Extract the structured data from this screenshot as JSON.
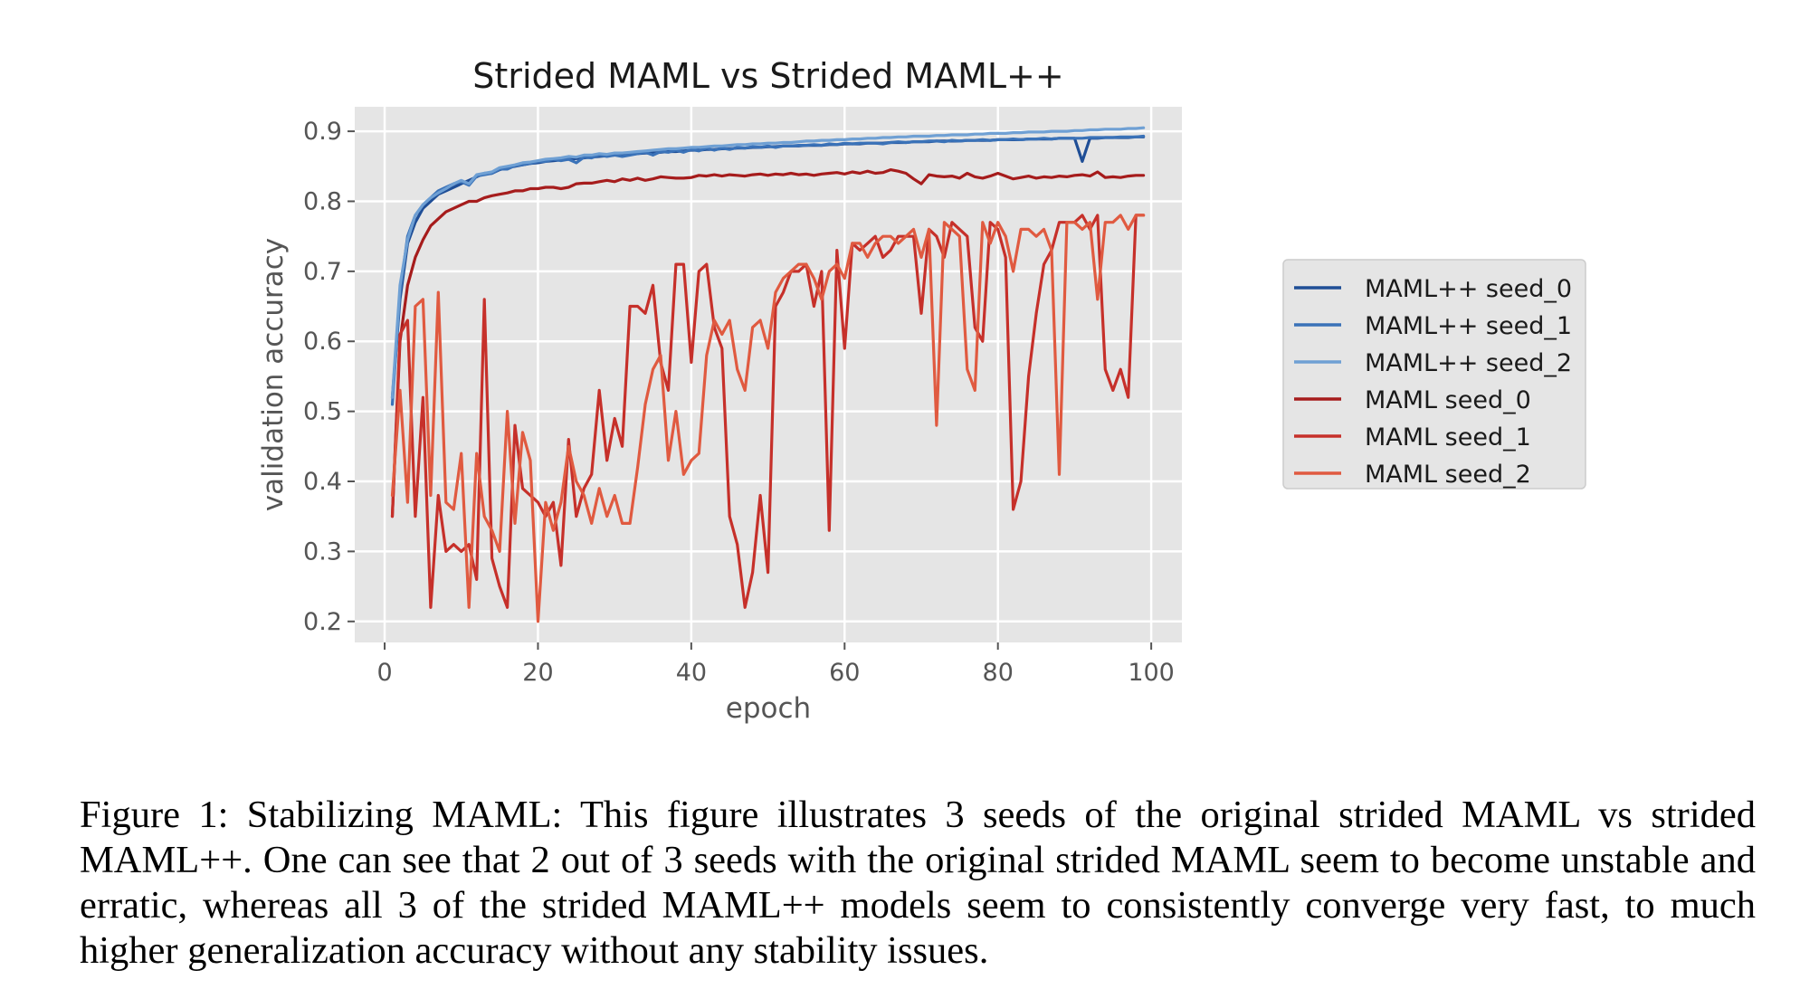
{
  "chart_data": {
    "type": "line",
    "title": "Strided MAML vs Strided MAML++",
    "xlabel": "epoch",
    "ylabel": "validation accuracy",
    "xlim": [
      -3.9,
      104
    ],
    "ylim": [
      0.17,
      0.935
    ],
    "xticks": [
      0,
      20,
      40,
      60,
      80,
      100
    ],
    "yticks": [
      0.2,
      0.3,
      0.4,
      0.5,
      0.6,
      0.7,
      0.8,
      0.9
    ],
    "xtick_labels": [
      "0",
      "20",
      "40",
      "60",
      "80",
      "100"
    ],
    "ytick_labels": [
      "0.2",
      "0.3",
      "0.4",
      "0.5",
      "0.6",
      "0.7",
      "0.8",
      "0.9"
    ],
    "grid": true,
    "legend_position": "outside-right",
    "background": "#e5e5e5",
    "x": [
      1,
      2,
      3,
      4,
      5,
      6,
      7,
      8,
      9,
      10,
      11,
      12,
      13,
      14,
      15,
      16,
      17,
      18,
      19,
      20,
      21,
      22,
      23,
      24,
      25,
      26,
      27,
      28,
      29,
      30,
      31,
      32,
      33,
      34,
      35,
      36,
      37,
      38,
      39,
      40,
      41,
      42,
      43,
      44,
      45,
      46,
      47,
      48,
      49,
      50,
      51,
      52,
      53,
      54,
      55,
      56,
      57,
      58,
      59,
      60,
      61,
      62,
      63,
      64,
      65,
      66,
      67,
      68,
      69,
      70,
      71,
      72,
      73,
      74,
      75,
      76,
      77,
      78,
      79,
      80,
      81,
      82,
      83,
      84,
      85,
      86,
      87,
      88,
      89,
      90,
      91,
      92,
      93,
      94,
      95,
      96,
      97,
      98,
      99
    ],
    "series": [
      {
        "name": "MAML++ seed_0",
        "color": "#1f4e96",
        "values": [
          0.52,
          0.66,
          0.74,
          0.77,
          0.79,
          0.8,
          0.81,
          0.815,
          0.82,
          0.825,
          0.83,
          0.835,
          0.84,
          0.84,
          0.845,
          0.848,
          0.85,
          0.852,
          0.854,
          0.855,
          0.857,
          0.858,
          0.859,
          0.86,
          0.861,
          0.862,
          0.863,
          0.864,
          0.865,
          0.866,
          0.866,
          0.867,
          0.868,
          0.869,
          0.869,
          0.87,
          0.871,
          0.871,
          0.872,
          0.873,
          0.873,
          0.874,
          0.874,
          0.875,
          0.875,
          0.876,
          0.876,
          0.877,
          0.877,
          0.878,
          0.878,
          0.879,
          0.879,
          0.879,
          0.88,
          0.88,
          0.88,
          0.881,
          0.881,
          0.882,
          0.882,
          0.882,
          0.883,
          0.883,
          0.883,
          0.884,
          0.884,
          0.884,
          0.885,
          0.885,
          0.885,
          0.886,
          0.886,
          0.886,
          0.886,
          0.887,
          0.887,
          0.887,
          0.887,
          0.888,
          0.888,
          0.888,
          0.888,
          0.889,
          0.889,
          0.889,
          0.889,
          0.89,
          0.89,
          0.89,
          0.857,
          0.89,
          0.89,
          0.891,
          0.891,
          0.891,
          0.891,
          0.892,
          0.892
        ]
      },
      {
        "name": "MAML++ seed_1",
        "color": "#3a72b8",
        "values": [
          0.51,
          0.67,
          0.75,
          0.78,
          0.795,
          0.805,
          0.815,
          0.82,
          0.825,
          0.828,
          0.823,
          0.836,
          0.838,
          0.84,
          0.846,
          0.846,
          0.851,
          0.852,
          0.854,
          0.857,
          0.857,
          0.86,
          0.858,
          0.86,
          0.855,
          0.863,
          0.862,
          0.866,
          0.864,
          0.866,
          0.864,
          0.866,
          0.868,
          0.87,
          0.866,
          0.871,
          0.87,
          0.873,
          0.87,
          0.874,
          0.872,
          0.876,
          0.873,
          0.876,
          0.874,
          0.877,
          0.876,
          0.878,
          0.877,
          0.879,
          0.877,
          0.879,
          0.879,
          0.88,
          0.88,
          0.881,
          0.88,
          0.882,
          0.881,
          0.883,
          0.882,
          0.883,
          0.883,
          0.883,
          0.882,
          0.884,
          0.885,
          0.884,
          0.885,
          0.885,
          0.886,
          0.886,
          0.885,
          0.887,
          0.886,
          0.887,
          0.887,
          0.888,
          0.887,
          0.888,
          0.888,
          0.889,
          0.888,
          0.889,
          0.889,
          0.89,
          0.889,
          0.89,
          0.89,
          0.89,
          0.89,
          0.891,
          0.891,
          0.891,
          0.891,
          0.892,
          0.892,
          0.892,
          0.893
        ]
      },
      {
        "name": "MAML++ seed_2",
        "color": "#6fa0d4",
        "values": [
          0.52,
          0.68,
          0.745,
          0.78,
          0.795,
          0.805,
          0.812,
          0.818,
          0.825,
          0.83,
          0.825,
          0.838,
          0.84,
          0.842,
          0.848,
          0.85,
          0.852,
          0.855,
          0.856,
          0.858,
          0.86,
          0.861,
          0.862,
          0.864,
          0.863,
          0.866,
          0.866,
          0.868,
          0.867,
          0.869,
          0.869,
          0.87,
          0.871,
          0.872,
          0.873,
          0.874,
          0.875,
          0.875,
          0.876,
          0.877,
          0.877,
          0.878,
          0.879,
          0.879,
          0.88,
          0.881,
          0.881,
          0.882,
          0.882,
          0.883,
          0.883,
          0.884,
          0.884,
          0.885,
          0.886,
          0.886,
          0.887,
          0.887,
          0.888,
          0.888,
          0.889,
          0.889,
          0.89,
          0.89,
          0.891,
          0.891,
          0.892,
          0.892,
          0.893,
          0.893,
          0.893,
          0.894,
          0.894,
          0.895,
          0.895,
          0.895,
          0.896,
          0.896,
          0.897,
          0.897,
          0.897,
          0.898,
          0.898,
          0.899,
          0.899,
          0.899,
          0.9,
          0.9,
          0.9,
          0.901,
          0.901,
          0.902,
          0.902,
          0.903,
          0.903,
          0.903,
          0.904,
          0.904,
          0.905
        ]
      },
      {
        "name": "MAML seed_0",
        "color": "#a61c1c",
        "values": [
          0.35,
          0.6,
          0.68,
          0.72,
          0.745,
          0.765,
          0.775,
          0.785,
          0.79,
          0.795,
          0.8,
          0.8,
          0.805,
          0.808,
          0.81,
          0.812,
          0.815,
          0.815,
          0.818,
          0.818,
          0.82,
          0.82,
          0.818,
          0.82,
          0.825,
          0.826,
          0.826,
          0.828,
          0.83,
          0.828,
          0.832,
          0.83,
          0.833,
          0.83,
          0.832,
          0.835,
          0.834,
          0.833,
          0.833,
          0.834,
          0.837,
          0.836,
          0.838,
          0.836,
          0.838,
          0.837,
          0.836,
          0.838,
          0.839,
          0.837,
          0.839,
          0.838,
          0.84,
          0.838,
          0.839,
          0.837,
          0.839,
          0.84,
          0.841,
          0.839,
          0.842,
          0.84,
          0.843,
          0.84,
          0.841,
          0.845,
          0.843,
          0.84,
          0.832,
          0.825,
          0.838,
          0.836,
          0.835,
          0.836,
          0.833,
          0.84,
          0.835,
          0.833,
          0.836,
          0.84,
          0.836,
          0.832,
          0.834,
          0.836,
          0.833,
          0.835,
          0.834,
          0.836,
          0.835,
          0.837,
          0.838,
          0.836,
          0.842,
          0.834,
          0.835,
          0.834,
          0.836,
          0.837,
          0.837
        ]
      },
      {
        "name": "MAML seed_1",
        "color": "#c6302a",
        "values": [
          0.35,
          0.61,
          0.63,
          0.35,
          0.52,
          0.22,
          0.38,
          0.3,
          0.31,
          0.3,
          0.31,
          0.26,
          0.66,
          0.29,
          0.25,
          0.22,
          0.48,
          0.39,
          0.38,
          0.37,
          0.35,
          0.37,
          0.28,
          0.46,
          0.35,
          0.39,
          0.41,
          0.53,
          0.43,
          0.49,
          0.45,
          0.65,
          0.65,
          0.64,
          0.68,
          0.57,
          0.53,
          0.71,
          0.71,
          0.57,
          0.7,
          0.71,
          0.62,
          0.59,
          0.35,
          0.31,
          0.22,
          0.27,
          0.38,
          0.27,
          0.65,
          0.67,
          0.7,
          0.7,
          0.71,
          0.65,
          0.7,
          0.33,
          0.73,
          0.59,
          0.74,
          0.73,
          0.74,
          0.75,
          0.72,
          0.73,
          0.75,
          0.75,
          0.75,
          0.64,
          0.76,
          0.75,
          0.72,
          0.77,
          0.76,
          0.75,
          0.62,
          0.6,
          0.77,
          0.76,
          0.72,
          0.36,
          0.4,
          0.55,
          0.64,
          0.71,
          0.73,
          0.77,
          0.77,
          0.77,
          0.78,
          0.76,
          0.78,
          0.56,
          0.53,
          0.56,
          0.52,
          0.78,
          0.78
        ]
      },
      {
        "name": "MAML seed_2",
        "color": "#e05a40",
        "values": [
          0.38,
          0.53,
          0.37,
          0.65,
          0.66,
          0.38,
          0.67,
          0.37,
          0.36,
          0.44,
          0.22,
          0.44,
          0.35,
          0.33,
          0.3,
          0.5,
          0.34,
          0.47,
          0.43,
          0.2,
          0.37,
          0.33,
          0.37,
          0.45,
          0.4,
          0.38,
          0.34,
          0.39,
          0.35,
          0.38,
          0.34,
          0.34,
          0.42,
          0.51,
          0.56,
          0.58,
          0.43,
          0.5,
          0.41,
          0.43,
          0.44,
          0.58,
          0.63,
          0.61,
          0.63,
          0.56,
          0.53,
          0.62,
          0.63,
          0.59,
          0.67,
          0.69,
          0.7,
          0.71,
          0.71,
          0.69,
          0.66,
          0.7,
          0.71,
          0.69,
          0.74,
          0.74,
          0.72,
          0.74,
          0.75,
          0.75,
          0.74,
          0.75,
          0.76,
          0.72,
          0.76,
          0.48,
          0.77,
          0.76,
          0.75,
          0.56,
          0.53,
          0.77,
          0.74,
          0.77,
          0.75,
          0.7,
          0.76,
          0.76,
          0.75,
          0.76,
          0.73,
          0.41,
          0.77,
          0.77,
          0.76,
          0.77,
          0.66,
          0.77,
          0.77,
          0.78,
          0.76,
          0.78,
          0.78
        ]
      }
    ]
  },
  "caption": "Figure 1: Stabilizing MAML: This figure illustrates 3 seeds of the original strided MAML vs strided MAML++. One can see that 2 out of 3 seeds with the original strided MAML seem to become unstable and erratic, whereas all 3 of the strided MAML++ models seem to consistently converge very fast, to much higher generalization accuracy without any stability issues."
}
